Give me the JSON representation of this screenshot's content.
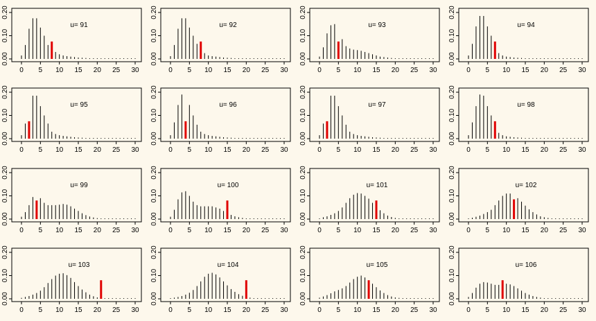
{
  "chart_data": [
    {
      "type": "bar",
      "label": "u=  91",
      "xlim": [
        0,
        30
      ],
      "ylim": [
        0,
        0.2
      ],
      "xticks": [
        "0",
        "5",
        "10",
        "15",
        "20",
        "25",
        "30"
      ],
      "yticks": [
        "0.00",
        "0.10",
        "0.20"
      ],
      "highlight_x": 8,
      "x": [
        0,
        1,
        2,
        3,
        4,
        5,
        6,
        7,
        8,
        9,
        10,
        11,
        12,
        13,
        14,
        15,
        16,
        17,
        18,
        19,
        20,
        21,
        22,
        23,
        24,
        25,
        26,
        27,
        28,
        29,
        30
      ],
      "values": [
        0.015,
        0.06,
        0.13,
        0.175,
        0.175,
        0.135,
        0.1,
        0.06,
        0.075,
        0.03,
        0.02,
        0.015,
        0.012,
        0.01,
        0.008,
        0.006,
        0.005,
        0.004,
        0.003,
        0.002,
        0.002,
        0.001,
        0.001,
        0.001,
        0.001,
        0.001,
        0,
        0,
        0,
        0,
        0
      ]
    },
    {
      "type": "bar",
      "label": "u=  92",
      "xlim": [
        0,
        30
      ],
      "ylim": [
        0,
        0.2
      ],
      "xticks": [
        "0",
        "5",
        "10",
        "15",
        "20",
        "25",
        "30"
      ],
      "yticks": [
        "0.00",
        "0.10",
        "0.20"
      ],
      "highlight_x": 8,
      "x": [
        0,
        1,
        2,
        3,
        4,
        5,
        6,
        7,
        8,
        9,
        10,
        11,
        12,
        13,
        14,
        15,
        16,
        17,
        18,
        19,
        20,
        21,
        22,
        23,
        24,
        25,
        26,
        27,
        28,
        29,
        30
      ],
      "values": [
        0.012,
        0.06,
        0.13,
        0.175,
        0.175,
        0.135,
        0.1,
        0.065,
        0.075,
        0.025,
        0.015,
        0.012,
        0.01,
        0.008,
        0.006,
        0.005,
        0.004,
        0.003,
        0.002,
        0.002,
        0.001,
        0.001,
        0.001,
        0.001,
        0,
        0,
        0,
        0,
        0,
        0,
        0
      ]
    },
    {
      "type": "bar",
      "label": "u=  93",
      "xlim": [
        0,
        30
      ],
      "ylim": [
        0,
        0.2
      ],
      "xticks": [
        "0",
        "5",
        "10",
        "15",
        "20",
        "25",
        "30"
      ],
      "yticks": [
        "0.00",
        "0.10",
        "0.20"
      ],
      "highlight_x": 5,
      "x": [
        0,
        1,
        2,
        3,
        4,
        5,
        6,
        7,
        8,
        9,
        10,
        11,
        12,
        13,
        14,
        15,
        16,
        17,
        18,
        19,
        20,
        21,
        22,
        23,
        24,
        25,
        26,
        27,
        28,
        29,
        30
      ],
      "values": [
        0.01,
        0.05,
        0.11,
        0.145,
        0.15,
        0.075,
        0.085,
        0.055,
        0.045,
        0.04,
        0.038,
        0.035,
        0.03,
        0.025,
        0.02,
        0.015,
        0.01,
        0.008,
        0.006,
        0.004,
        0.003,
        0.002,
        0.002,
        0.001,
        0.001,
        0.001,
        0,
        0,
        0,
        0,
        0
      ]
    },
    {
      "type": "bar",
      "label": "u=  94",
      "xlim": [
        0,
        30
      ],
      "ylim": [
        0,
        0.2
      ],
      "xticks": [
        "0",
        "5",
        "10",
        "15",
        "20",
        "25",
        "30"
      ],
      "yticks": [
        "0.00",
        "0.10",
        "0.20"
      ],
      "highlight_x": 7,
      "x": [
        0,
        1,
        2,
        3,
        4,
        5,
        6,
        7,
        8,
        9,
        10,
        11,
        12,
        13,
        14,
        15,
        16,
        17,
        18,
        19,
        20,
        21,
        22,
        23,
        24,
        25,
        26,
        27,
        28,
        29,
        30
      ],
      "values": [
        0.015,
        0.065,
        0.14,
        0.185,
        0.185,
        0.14,
        0.1,
        0.075,
        0.025,
        0.015,
        0.01,
        0.008,
        0.006,
        0.005,
        0.004,
        0.003,
        0.002,
        0.002,
        0.001,
        0.001,
        0.001,
        0,
        0,
        0,
        0,
        0,
        0,
        0,
        0,
        0,
        0
      ]
    },
    {
      "type": "bar",
      "label": "u=  95",
      "xlim": [
        0,
        30
      ],
      "ylim": [
        0,
        0.2
      ],
      "xticks": [
        "0",
        "5",
        "10",
        "15",
        "20",
        "25",
        "30"
      ],
      "yticks": [
        "0.00",
        "0.10",
        "0.20"
      ],
      "highlight_x": 2,
      "x": [
        0,
        1,
        2,
        3,
        4,
        5,
        6,
        7,
        8,
        9,
        10,
        11,
        12,
        13,
        14,
        15,
        16,
        17,
        18,
        19,
        20,
        21,
        22,
        23,
        24,
        25,
        26,
        27,
        28,
        29,
        30
      ],
      "values": [
        0.015,
        0.065,
        0.075,
        0.185,
        0.185,
        0.14,
        0.1,
        0.065,
        0.03,
        0.02,
        0.015,
        0.012,
        0.01,
        0.008,
        0.006,
        0.005,
        0.004,
        0.003,
        0.002,
        0.002,
        0.001,
        0.001,
        0.001,
        0,
        0,
        0,
        0,
        0,
        0,
        0,
        0
      ]
    },
    {
      "type": "bar",
      "label": "u=  96",
      "xlim": [
        0,
        30
      ],
      "ylim": [
        0,
        0.2
      ],
      "xticks": [
        "0",
        "5",
        "10",
        "15",
        "20",
        "25",
        "30"
      ],
      "yticks": [
        "0.00",
        "0.10",
        "0.20"
      ],
      "highlight_x": 4,
      "x": [
        0,
        1,
        2,
        3,
        4,
        5,
        6,
        7,
        8,
        9,
        10,
        11,
        12,
        13,
        14,
        15,
        16,
        17,
        18,
        19,
        20,
        21,
        22,
        23,
        24,
        25,
        26,
        27,
        28,
        29,
        30
      ],
      "values": [
        0.015,
        0.07,
        0.145,
        0.19,
        0.075,
        0.145,
        0.1,
        0.06,
        0.03,
        0.02,
        0.015,
        0.012,
        0.01,
        0.008,
        0.006,
        0.005,
        0.004,
        0.003,
        0.002,
        0.002,
        0.001,
        0.001,
        0.001,
        0,
        0,
        0,
        0,
        0,
        0,
        0,
        0
      ]
    },
    {
      "type": "bar",
      "label": "u=  97",
      "xlim": [
        0,
        30
      ],
      "ylim": [
        0,
        0.2
      ],
      "xticks": [
        "0",
        "5",
        "10",
        "15",
        "20",
        "25",
        "30"
      ],
      "yticks": [
        "0.00",
        "0.10",
        "0.20"
      ],
      "highlight_x": 2,
      "x": [
        0,
        1,
        2,
        3,
        4,
        5,
        6,
        7,
        8,
        9,
        10,
        11,
        12,
        13,
        14,
        15,
        16,
        17,
        18,
        19,
        20,
        21,
        22,
        23,
        24,
        25,
        26,
        27,
        28,
        29,
        30
      ],
      "values": [
        0.015,
        0.065,
        0.075,
        0.185,
        0.185,
        0.14,
        0.1,
        0.06,
        0.03,
        0.02,
        0.015,
        0.012,
        0.01,
        0.008,
        0.006,
        0.005,
        0.004,
        0.003,
        0.002,
        0.002,
        0.001,
        0.001,
        0.001,
        0,
        0,
        0,
        0,
        0,
        0,
        0,
        0
      ]
    },
    {
      "type": "bar",
      "label": "u=  98",
      "xlim": [
        0,
        30
      ],
      "ylim": [
        0,
        0.2
      ],
      "xticks": [
        "0",
        "5",
        "10",
        "15",
        "20",
        "25",
        "30"
      ],
      "yticks": [
        "0.00",
        "0.10",
        "0.20"
      ],
      "highlight_x": 7,
      "x": [
        0,
        1,
        2,
        3,
        4,
        5,
        6,
        7,
        8,
        9,
        10,
        11,
        12,
        13,
        14,
        15,
        16,
        17,
        18,
        19,
        20,
        21,
        22,
        23,
        24,
        25,
        26,
        27,
        28,
        29,
        30
      ],
      "values": [
        0.015,
        0.07,
        0.14,
        0.19,
        0.185,
        0.14,
        0.1,
        0.075,
        0.025,
        0.015,
        0.01,
        0.008,
        0.006,
        0.005,
        0.004,
        0.003,
        0.002,
        0.002,
        0.001,
        0.001,
        0.001,
        0,
        0,
        0,
        0,
        0,
        0,
        0,
        0,
        0,
        0
      ]
    },
    {
      "type": "bar",
      "label": "u=  99",
      "xlim": [
        0,
        30
      ],
      "ylim": [
        0,
        0.2
      ],
      "xticks": [
        "0",
        "5",
        "10",
        "15",
        "20",
        "25",
        "30"
      ],
      "yticks": [
        "0.00",
        "0.10",
        "0.20"
      ],
      "highlight_x": 4,
      "x": [
        0,
        1,
        2,
        3,
        4,
        5,
        6,
        7,
        8,
        9,
        10,
        11,
        12,
        13,
        14,
        15,
        16,
        17,
        18,
        19,
        20,
        21,
        22,
        23,
        24,
        25,
        26,
        27,
        28,
        29,
        30
      ],
      "values": [
        0.01,
        0.03,
        0.06,
        0.095,
        0.08,
        0.09,
        0.07,
        0.06,
        0.06,
        0.06,
        0.062,
        0.065,
        0.062,
        0.055,
        0.045,
        0.035,
        0.025,
        0.017,
        0.011,
        0.007,
        0.004,
        0.003,
        0.002,
        0.001,
        0.001,
        0.001,
        0,
        0,
        0,
        0,
        0
      ]
    },
    {
      "type": "bar",
      "label": "u=  100",
      "xlim": [
        0,
        30
      ],
      "ylim": [
        0,
        0.2
      ],
      "xticks": [
        "0",
        "5",
        "10",
        "15",
        "20",
        "25",
        "30"
      ],
      "yticks": [
        "0.00",
        "0.10",
        "0.20"
      ],
      "highlight_x": 15,
      "x": [
        0,
        1,
        2,
        3,
        4,
        5,
        6,
        7,
        8,
        9,
        10,
        11,
        12,
        13,
        14,
        15,
        16,
        17,
        18,
        19,
        20,
        21,
        22,
        23,
        24,
        25,
        26,
        27,
        28,
        29,
        30
      ],
      "values": [
        0.01,
        0.04,
        0.085,
        0.115,
        0.12,
        0.1,
        0.075,
        0.06,
        0.055,
        0.055,
        0.055,
        0.055,
        0.05,
        0.045,
        0.035,
        0.08,
        0.018,
        0.012,
        0.008,
        0.005,
        0.003,
        0.002,
        0.001,
        0.001,
        0,
        0,
        0,
        0,
        0,
        0,
        0
      ]
    },
    {
      "type": "bar",
      "label": "u=  101",
      "xlim": [
        0,
        30
      ],
      "ylim": [
        0,
        0.2
      ],
      "xticks": [
        "0",
        "5",
        "10",
        "15",
        "20",
        "25",
        "30"
      ],
      "yticks": [
        "0.00",
        "0.10",
        "0.20"
      ],
      "highlight_x": 15,
      "x": [
        0,
        1,
        2,
        3,
        4,
        5,
        6,
        7,
        8,
        9,
        10,
        11,
        12,
        13,
        14,
        15,
        16,
        17,
        18,
        19,
        20,
        21,
        22,
        23,
        24,
        25,
        26,
        27,
        28,
        29,
        30
      ],
      "values": [
        0.003,
        0.008,
        0.012,
        0.018,
        0.025,
        0.035,
        0.05,
        0.07,
        0.09,
        0.105,
        0.112,
        0.11,
        0.1,
        0.088,
        0.07,
        0.08,
        0.038,
        0.025,
        0.015,
        0.009,
        0.005,
        0.003,
        0.002,
        0.001,
        0.001,
        0,
        0,
        0,
        0,
        0,
        0
      ]
    },
    {
      "type": "bar",
      "label": "u=  102",
      "xlim": [
        0,
        30
      ],
      "ylim": [
        0,
        0.2
      ],
      "xticks": [
        "0",
        "5",
        "10",
        "15",
        "20",
        "25",
        "30"
      ],
      "yticks": [
        "0.00",
        "0.10",
        "0.20"
      ],
      "highlight_x": 12,
      "x": [
        0,
        1,
        2,
        3,
        4,
        5,
        6,
        7,
        8,
        9,
        10,
        11,
        12,
        13,
        14,
        15,
        16,
        17,
        18,
        19,
        20,
        21,
        22,
        23,
        24,
        25,
        26,
        27,
        28,
        29,
        30
      ],
      "values": [
        0.002,
        0.006,
        0.01,
        0.015,
        0.022,
        0.03,
        0.04,
        0.06,
        0.08,
        0.1,
        0.11,
        0.11,
        0.085,
        0.09,
        0.075,
        0.058,
        0.042,
        0.03,
        0.02,
        0.012,
        0.008,
        0.005,
        0.003,
        0.002,
        0.001,
        0.001,
        0,
        0,
        0,
        0,
        0
      ]
    },
    {
      "type": "bar",
      "label": "u=  103",
      "xlim": [
        0,
        30
      ],
      "ylim": [
        0,
        0.2
      ],
      "xticks": [
        "0",
        "5",
        "10",
        "15",
        "20",
        "25",
        "30"
      ],
      "yticks": [
        "0.00",
        "0.10",
        "0.20"
      ],
      "highlight_x": 21,
      "x": [
        0,
        1,
        2,
        3,
        4,
        5,
        6,
        7,
        8,
        9,
        10,
        11,
        12,
        13,
        14,
        15,
        16,
        17,
        18,
        19,
        20,
        21,
        22,
        23,
        24,
        25,
        26,
        27,
        28,
        29,
        30
      ],
      "values": [
        0.004,
        0.008,
        0.012,
        0.018,
        0.025,
        0.035,
        0.05,
        0.068,
        0.085,
        0.1,
        0.108,
        0.11,
        0.102,
        0.09,
        0.072,
        0.055,
        0.04,
        0.028,
        0.018,
        0.011,
        0.006,
        0.08,
        0.002,
        0.001,
        0.001,
        0,
        0,
        0,
        0,
        0,
        0
      ]
    },
    {
      "type": "bar",
      "label": "u=  104",
      "xlim": [
        0,
        30
      ],
      "ylim": [
        0,
        0.2
      ],
      "xticks": [
        "0",
        "5",
        "10",
        "15",
        "20",
        "25",
        "30"
      ],
      "yticks": [
        "0.00",
        "0.10",
        "0.20"
      ],
      "highlight_x": 20,
      "x": [
        0,
        1,
        2,
        3,
        4,
        5,
        6,
        7,
        8,
        9,
        10,
        11,
        12,
        13,
        14,
        15,
        16,
        17,
        18,
        19,
        20,
        21,
        22,
        23,
        24,
        25,
        26,
        27,
        28,
        29,
        30
      ],
      "values": [
        0.002,
        0.005,
        0.008,
        0.012,
        0.018,
        0.026,
        0.038,
        0.055,
        0.075,
        0.095,
        0.108,
        0.112,
        0.105,
        0.092,
        0.075,
        0.058,
        0.042,
        0.03,
        0.02,
        0.013,
        0.08,
        0.005,
        0.003,
        0.002,
        0.001,
        0.001,
        0,
        0,
        0,
        0,
        0
      ]
    },
    {
      "type": "bar",
      "label": "u=  105",
      "xlim": [
        0,
        30
      ],
      "ylim": [
        0,
        0.2
      ],
      "xticks": [
        "0",
        "5",
        "10",
        "15",
        "20",
        "25",
        "30"
      ],
      "yticks": [
        "0.00",
        "0.10",
        "0.20"
      ],
      "highlight_x": 13,
      "x": [
        0,
        1,
        2,
        3,
        4,
        5,
        6,
        7,
        8,
        9,
        10,
        11,
        12,
        13,
        14,
        15,
        16,
        17,
        18,
        19,
        20,
        21,
        22,
        23,
        24,
        25,
        26,
        27,
        28,
        29,
        30
      ],
      "values": [
        0.005,
        0.01,
        0.016,
        0.024,
        0.032,
        0.038,
        0.045,
        0.055,
        0.07,
        0.085,
        0.095,
        0.1,
        0.092,
        0.08,
        0.065,
        0.05,
        0.036,
        0.025,
        0.016,
        0.01,
        0.006,
        0.004,
        0.002,
        0.001,
        0.001,
        0,
        0,
        0,
        0,
        0,
        0
      ]
    },
    {
      "type": "bar",
      "label": "u=  106",
      "xlim": [
        0,
        30
      ],
      "ylim": [
        0,
        0.2
      ],
      "xticks": [
        "0",
        "5",
        "10",
        "15",
        "20",
        "25",
        "30"
      ],
      "yticks": [
        "0.00",
        "0.10",
        "0.20"
      ],
      "highlight_x": 9,
      "x": [
        0,
        1,
        2,
        3,
        4,
        5,
        6,
        7,
        8,
        9,
        10,
        11,
        12,
        13,
        14,
        15,
        16,
        17,
        18,
        19,
        20,
        21,
        22,
        23,
        24,
        25,
        26,
        27,
        28,
        29,
        30
      ],
      "values": [
        0.008,
        0.025,
        0.048,
        0.065,
        0.072,
        0.07,
        0.065,
        0.06,
        0.06,
        0.08,
        0.065,
        0.062,
        0.055,
        0.045,
        0.035,
        0.025,
        0.018,
        0.012,
        0.008,
        0.005,
        0.003,
        0.002,
        0.001,
        0.001,
        0,
        0,
        0,
        0,
        0,
        0,
        0
      ]
    }
  ],
  "colors": {
    "background": "#fdf8ec",
    "bar": "#000000",
    "highlight": "#e00000"
  }
}
